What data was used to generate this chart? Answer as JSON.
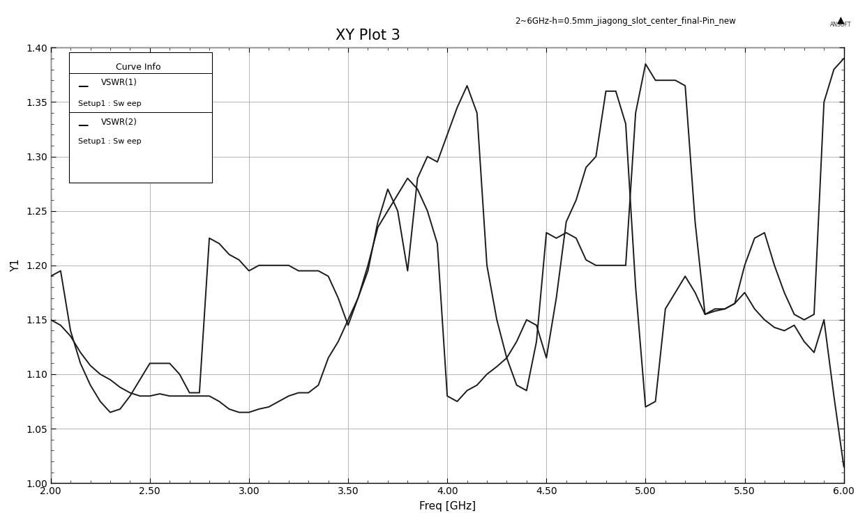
{
  "title": "XY Plot 3",
  "subtitle": "2~6GHz-h=0.5mm_jiagong_slot_center_final-Pin_new",
  "xlabel": "Freq [GHz]",
  "ylabel": "Y1",
  "xlim": [
    2.0,
    6.0
  ],
  "ylim": [
    1.0,
    1.4
  ],
  "xticks": [
    2.0,
    2.5,
    3.0,
    3.5,
    4.0,
    4.5,
    5.0,
    5.5,
    6.0
  ],
  "yticks": [
    1.0,
    1.05,
    1.1,
    1.15,
    1.2,
    1.25,
    1.3,
    1.35,
    1.4
  ],
  "background_color": "#ffffff",
  "grid_color": "#aaaaaa",
  "line_color": "#1a1a1a",
  "vswr1_x": [
    2.0,
    2.05,
    2.1,
    2.15,
    2.2,
    2.25,
    2.3,
    2.35,
    2.4,
    2.45,
    2.5,
    2.55,
    2.6,
    2.65,
    2.7,
    2.75,
    2.8,
    2.85,
    2.9,
    2.95,
    3.0,
    3.05,
    3.1,
    3.15,
    3.2,
    3.25,
    3.3,
    3.35,
    3.4,
    3.45,
    3.5,
    3.55,
    3.6,
    3.65,
    3.7,
    3.75,
    3.8,
    3.85,
    3.9,
    3.95,
    4.0,
    4.05,
    4.1,
    4.15,
    4.2,
    4.25,
    4.3,
    4.35,
    4.4,
    4.45,
    4.5,
    4.55,
    4.6,
    4.65,
    4.7,
    4.75,
    4.8,
    4.85,
    4.9,
    4.95,
    5.0,
    5.05,
    5.1,
    5.15,
    5.2,
    5.25,
    5.3,
    5.35,
    5.4,
    5.45,
    5.5,
    5.55,
    5.6,
    5.65,
    5.7,
    5.75,
    5.8,
    5.85,
    5.9,
    5.95,
    6.0
  ],
  "vswr1_y": [
    1.19,
    1.195,
    1.14,
    1.11,
    1.09,
    1.075,
    1.065,
    1.068,
    1.08,
    1.095,
    1.11,
    1.11,
    1.11,
    1.1,
    1.083,
    1.083,
    1.225,
    1.22,
    1.21,
    1.205,
    1.195,
    1.2,
    1.2,
    1.2,
    1.2,
    1.195,
    1.195,
    1.195,
    1.19,
    1.17,
    1.145,
    1.17,
    1.195,
    1.24,
    1.27,
    1.25,
    1.195,
    1.28,
    1.3,
    1.295,
    1.32,
    1.345,
    1.365,
    1.34,
    1.2,
    1.15,
    1.115,
    1.09,
    1.085,
    1.13,
    1.23,
    1.225,
    1.23,
    1.225,
    1.205,
    1.2,
    1.2,
    1.2,
    1.2,
    1.34,
    1.385,
    1.37,
    1.37,
    1.37,
    1.365,
    1.24,
    1.155,
    1.16,
    1.16,
    1.165,
    1.2,
    1.225,
    1.23,
    1.2,
    1.175,
    1.155,
    1.15,
    1.155,
    1.35,
    1.38,
    1.39
  ],
  "vswr2_x": [
    2.0,
    2.05,
    2.1,
    2.15,
    2.2,
    2.25,
    2.3,
    2.35,
    2.4,
    2.45,
    2.5,
    2.55,
    2.6,
    2.65,
    2.7,
    2.75,
    2.8,
    2.85,
    2.9,
    2.95,
    3.0,
    3.05,
    3.1,
    3.15,
    3.2,
    3.25,
    3.3,
    3.35,
    3.4,
    3.45,
    3.5,
    3.55,
    3.6,
    3.65,
    3.7,
    3.75,
    3.8,
    3.85,
    3.9,
    3.95,
    4.0,
    4.05,
    4.1,
    4.15,
    4.2,
    4.25,
    4.3,
    4.35,
    4.4,
    4.45,
    4.5,
    4.55,
    4.6,
    4.65,
    4.7,
    4.75,
    4.8,
    4.85,
    4.9,
    4.95,
    5.0,
    5.05,
    5.1,
    5.15,
    5.2,
    5.25,
    5.3,
    5.35,
    5.4,
    5.45,
    5.5,
    5.55,
    5.6,
    5.65,
    5.7,
    5.75,
    5.8,
    5.85,
    5.9,
    5.95,
    6.0
  ],
  "vswr2_y": [
    1.15,
    1.145,
    1.135,
    1.12,
    1.108,
    1.1,
    1.095,
    1.088,
    1.083,
    1.08,
    1.08,
    1.082,
    1.08,
    1.08,
    1.08,
    1.08,
    1.08,
    1.075,
    1.068,
    1.065,
    1.065,
    1.068,
    1.07,
    1.075,
    1.08,
    1.083,
    1.083,
    1.09,
    1.115,
    1.13,
    1.15,
    1.17,
    1.2,
    1.235,
    1.25,
    1.265,
    1.28,
    1.27,
    1.25,
    1.22,
    1.08,
    1.075,
    1.085,
    1.09,
    1.1,
    1.107,
    1.115,
    1.13,
    1.15,
    1.145,
    1.115,
    1.17,
    1.24,
    1.26,
    1.29,
    1.3,
    1.36,
    1.36,
    1.33,
    1.18,
    1.07,
    1.075,
    1.16,
    1.175,
    1.19,
    1.175,
    1.155,
    1.158,
    1.16,
    1.165,
    1.175,
    1.16,
    1.15,
    1.143,
    1.14,
    1.145,
    1.13,
    1.12,
    1.15,
    1.08,
    1.015
  ],
  "legend_title": "Curve Info",
  "legend_line1": "VSWR(1)",
  "legend_sub1": "Setup1 : Sw eep",
  "legend_line2": "VSWR(2)",
  "legend_sub2": "Setup1 : Sw eep"
}
